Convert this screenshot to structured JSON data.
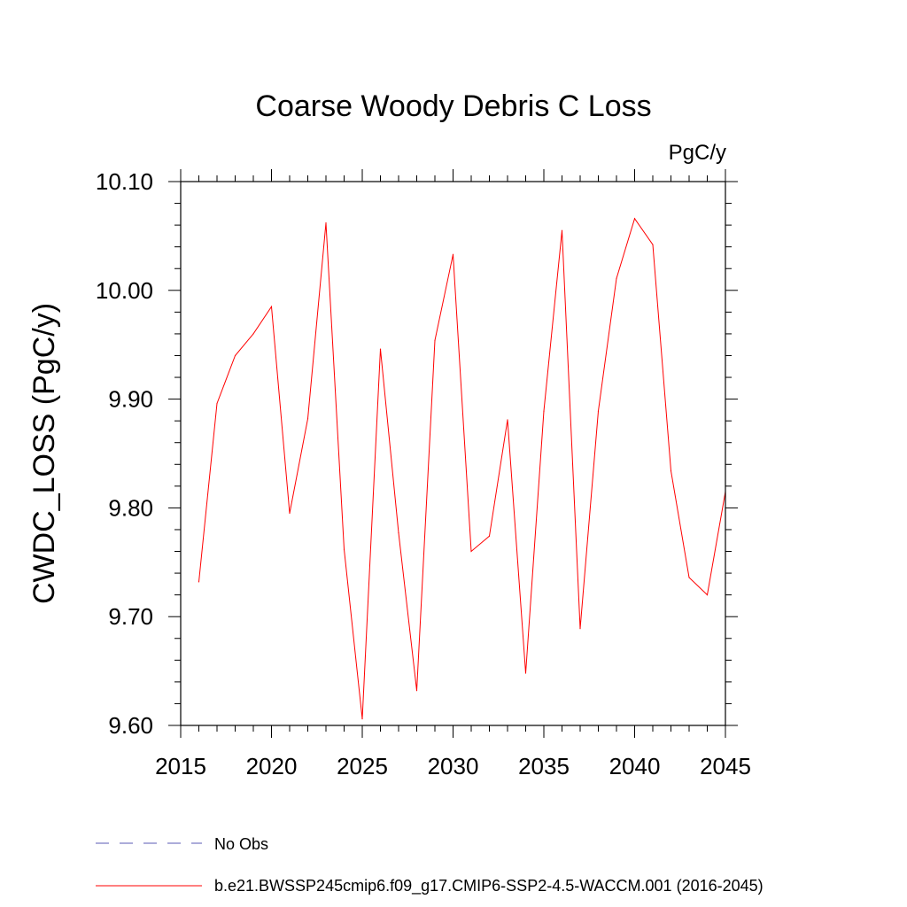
{
  "chart_data": {
    "type": "line",
    "title": "Coarse Woody Debris C Loss",
    "units_label": "PgC/y",
    "xlabel": "",
    "ylabel": "CWDC_LOSS  (PgC/y)",
    "xlim": [
      2015,
      2045
    ],
    "ylim": [
      9.6,
      10.1
    ],
    "x_ticks": [
      2015,
      2020,
      2025,
      2030,
      2035,
      2040,
      2045
    ],
    "x_tick_labels": [
      "2015",
      "2020",
      "2025",
      "2030",
      "2035",
      "2040",
      "2045"
    ],
    "y_ticks": [
      9.6,
      9.7,
      9.8,
      9.9,
      10.0,
      10.1
    ],
    "y_tick_labels": [
      "9.60",
      "9.70",
      "9.80",
      "9.90",
      "10.00",
      "10.10"
    ],
    "series": [
      {
        "name": "b.e21.BWSSP245cmip6.f09_g17.CMIP6-SSP2-4.5-WACCM.001 (2016-2045)",
        "color": "#ff0000",
        "x": [
          2016,
          2017,
          2018,
          2019,
          2020,
          2021,
          2022,
          2023,
          2024,
          2025,
          2026,
          2027,
          2028,
          2029,
          2030,
          2031,
          2032,
          2033,
          2034,
          2035,
          2036,
          2037,
          2038,
          2039,
          2040,
          2041,
          2042,
          2043,
          2044,
          2045
        ],
        "values": [
          9.732,
          9.896,
          9.94,
          9.96,
          9.985,
          9.795,
          9.882,
          10.062,
          9.762,
          9.606,
          9.946,
          9.777,
          9.632,
          9.954,
          10.033,
          9.76,
          9.774,
          9.881,
          9.648,
          9.889,
          10.055,
          9.689,
          9.889,
          10.011,
          10.066,
          10.042,
          9.834,
          9.736,
          9.72,
          9.815
        ]
      }
    ],
    "legend": [
      {
        "label": "No Obs",
        "color": "#5a5ab4",
        "style": "dashed"
      },
      {
        "label": "b.e21.BWSSP245cmip6.f09_g17.CMIP6-SSP2-4.5-WACCM.001 (2016-2045)",
        "color": "#ff0000",
        "style": "solid"
      }
    ]
  }
}
